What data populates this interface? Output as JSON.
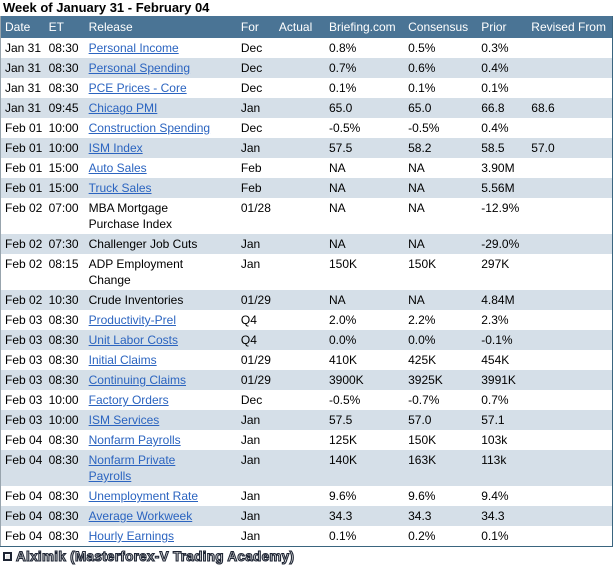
{
  "title": "Week of January 31 - February 04",
  "table": {
    "columns": [
      {
        "key": "date",
        "label": "Date"
      },
      {
        "key": "et",
        "label": "ET"
      },
      {
        "key": "release",
        "label": "Release"
      },
      {
        "key": "for",
        "label": "For"
      },
      {
        "key": "actual",
        "label": "Actual"
      },
      {
        "key": "briefing",
        "label": "Briefing.com"
      },
      {
        "key": "consensus",
        "label": "Consensus"
      },
      {
        "key": "prior",
        "label": "Prior"
      },
      {
        "key": "revised",
        "label": "Revised From"
      }
    ],
    "rows": [
      {
        "date": "Jan 31",
        "et": "08:30",
        "release": "Personal Income",
        "link": true,
        "for": "Dec",
        "actual": "",
        "briefing": "0.8%",
        "consensus": "0.5%",
        "prior": "0.3%",
        "revised": ""
      },
      {
        "date": "Jan 31",
        "et": "08:30",
        "release": "Personal Spending",
        "link": true,
        "for": "Dec",
        "actual": "",
        "briefing": "0.7%",
        "consensus": "0.6%",
        "prior": "0.4%",
        "revised": ""
      },
      {
        "date": "Jan 31",
        "et": "08:30",
        "release": "PCE Prices - Core",
        "link": true,
        "for": "Dec",
        "actual": "",
        "briefing": "0.1%",
        "consensus": "0.1%",
        "prior": "0.1%",
        "revised": ""
      },
      {
        "date": "Jan 31",
        "et": "09:45",
        "release": "Chicago PMI",
        "link": true,
        "for": "Jan",
        "actual": "",
        "briefing": "65.0",
        "consensus": "65.0",
        "prior": "66.8",
        "revised": "68.6"
      },
      {
        "date": "Feb 01",
        "et": "10:00",
        "release": "Construction Spending",
        "link": true,
        "for": "Dec",
        "actual": "",
        "briefing": "-0.5%",
        "consensus": "-0.5%",
        "prior": "0.4%",
        "revised": ""
      },
      {
        "date": "Feb 01",
        "et": "10:00",
        "release": "ISM Index",
        "link": true,
        "for": "Jan",
        "actual": "",
        "briefing": "57.5",
        "consensus": "58.2",
        "prior": "58.5",
        "revised": "57.0"
      },
      {
        "date": "Feb 01",
        "et": "15:00",
        "release": "Auto Sales",
        "link": true,
        "for": "Feb",
        "actual": "",
        "briefing": "NA",
        "consensus": "NA",
        "prior": "3.90M",
        "revised": ""
      },
      {
        "date": "Feb 01",
        "et": "15:00",
        "release": "Truck Sales",
        "link": true,
        "for": "Feb",
        "actual": "",
        "briefing": "NA",
        "consensus": "NA",
        "prior": "5.56M",
        "revised": ""
      },
      {
        "date": "Feb 02",
        "et": "07:00",
        "release": "MBA Mortgage\nPurchase Index",
        "link": false,
        "for": "01/28",
        "actual": "",
        "briefing": "NA",
        "consensus": "NA",
        "prior": "-12.9%",
        "revised": ""
      },
      {
        "date": "Feb 02",
        "et": "07:30",
        "release": "Challenger Job Cuts",
        "link": false,
        "for": "Jan",
        "actual": "",
        "briefing": "NA",
        "consensus": "NA",
        "prior": "-29.0%",
        "revised": ""
      },
      {
        "date": "Feb 02",
        "et": "08:15",
        "release": "ADP Employment\nChange",
        "link": false,
        "for": "Jan",
        "actual": "",
        "briefing": "150K",
        "consensus": "150K",
        "prior": "297K",
        "revised": ""
      },
      {
        "date": "Feb 02",
        "et": "10:30",
        "release": "Crude Inventories",
        "link": false,
        "for": "01/29",
        "actual": "",
        "briefing": "NA",
        "consensus": "NA",
        "prior": "4.84M",
        "revised": ""
      },
      {
        "date": "Feb 03",
        "et": "08:30",
        "release": "Productivity-Prel",
        "link": true,
        "for": "Q4",
        "actual": "",
        "briefing": "2.0%",
        "consensus": "2.2%",
        "prior": "2.3%",
        "revised": ""
      },
      {
        "date": "Feb 03",
        "et": "08:30",
        "release": "Unit Labor Costs",
        "link": true,
        "for": "Q4",
        "actual": "",
        "briefing": "0.0%",
        "consensus": "0.0%",
        "prior": "-0.1%",
        "revised": ""
      },
      {
        "date": "Feb 03",
        "et": "08:30",
        "release": "Initial Claims",
        "link": true,
        "for": "01/29",
        "actual": "",
        "briefing": "410K",
        "consensus": "425K",
        "prior": "454K",
        "revised": ""
      },
      {
        "date": "Feb 03",
        "et": "08:30",
        "release": "Continuing Claims",
        "link": true,
        "for": "01/29",
        "actual": "",
        "briefing": "3900K",
        "consensus": "3925K",
        "prior": "3991K",
        "revised": ""
      },
      {
        "date": "Feb 03",
        "et": "10:00",
        "release": "Factory Orders",
        "link": true,
        "for": "Dec",
        "actual": "",
        "briefing": "-0.5%",
        "consensus": "-0.7%",
        "prior": "0.7%",
        "revised": ""
      },
      {
        "date": "Feb 03",
        "et": "10:00",
        "release": "ISM Services",
        "link": true,
        "for": "Jan",
        "actual": "",
        "briefing": "57.5",
        "consensus": "57.0",
        "prior": "57.1",
        "revised": ""
      },
      {
        "date": "Feb 04",
        "et": "08:30",
        "release": "Nonfarm Payrolls",
        "link": true,
        "for": "Jan",
        "actual": "",
        "briefing": "125K",
        "consensus": "150K",
        "prior": "103k",
        "revised": ""
      },
      {
        "date": "Feb 04",
        "et": "08:30",
        "release": "Nonfarm Private\nPayrolls",
        "link": true,
        "for": "Jan",
        "actual": "",
        "briefing": "140K",
        "consensus": "163K",
        "prior": "113k",
        "revised": ""
      },
      {
        "date": "Feb 04",
        "et": "08:30",
        "release": "Unemployment Rate",
        "link": true,
        "for": "Jan",
        "actual": "",
        "briefing": "9.6%",
        "consensus": "9.6%",
        "prior": "9.4%",
        "revised": ""
      },
      {
        "date": "Feb 04",
        "et": "08:30",
        "release": "Average Workweek",
        "link": true,
        "for": "Jan",
        "actual": "",
        "briefing": "34.3",
        "consensus": "34.3",
        "prior": "34.3",
        "revised": ""
      },
      {
        "date": "Feb 04",
        "et": "08:30",
        "release": "Hourly Earnings",
        "link": true,
        "for": "Jan",
        "actual": "",
        "briefing": "0.1%",
        "consensus": "0.2%",
        "prior": "0.1%",
        "revised": ""
      }
    ]
  },
  "footer": {
    "icon": "square-icon",
    "text": "Alximik (Masterforex-V Trading Academy)"
  },
  "colors": {
    "header-bg": "#4a7495",
    "header-text": "#ffffff",
    "stripe": "#d5dfe8",
    "link": "#2b64c0",
    "text": "#000000",
    "border-dark": "#3a657f",
    "border-light": "#98a4ad",
    "wm-fill": "#e2e2e2",
    "wm-outline": "#1d2433"
  }
}
